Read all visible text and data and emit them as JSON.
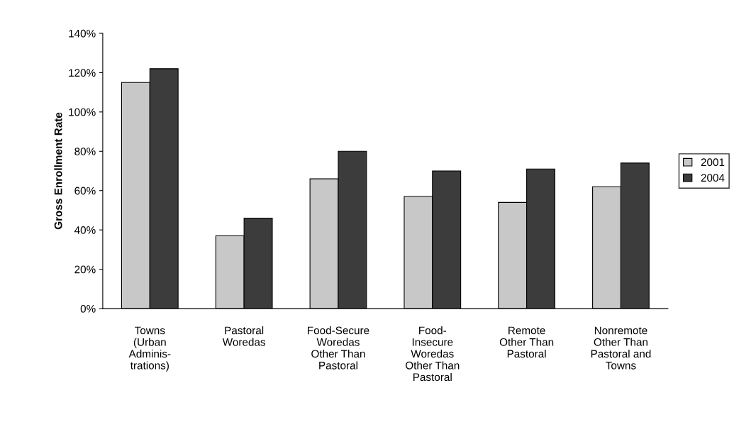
{
  "chart_data": {
    "type": "bar",
    "ylabel": "Gross Enrollment Rate",
    "categories": [
      "Towns\n(Urban\nAdminis-\ntrations)",
      "Pastoral\nWoredas",
      "Food-Secure\nWoredas\nOther Than\nPastoral",
      "Food-\nInsecure\nWoredas\nOther Than\nPastoral",
      "Remote\nOther Than\nPastoral",
      "Nonremote\nOther Than\nPastoral and\nTowns"
    ],
    "series": [
      {
        "name": "2001",
        "color": "#c8c8c8",
        "values": [
          115,
          37,
          66,
          57,
          54,
          62
        ]
      },
      {
        "name": "2004",
        "color": "#3c3c3c",
        "values": [
          122,
          46,
          80,
          70,
          71,
          74
        ]
      }
    ],
    "ylim": [
      0,
      140
    ],
    "yticks": [
      {
        "value": 0,
        "label": "0%"
      },
      {
        "value": 20,
        "label": "20%"
      },
      {
        "value": 40,
        "label": "40%"
      },
      {
        "value": 60,
        "label": "60%"
      },
      {
        "value": 80,
        "label": "80%"
      },
      {
        "value": 100,
        "label": "100%"
      },
      {
        "value": 120,
        "label": "120%"
      },
      {
        "value": 140,
        "label": "140%"
      }
    ],
    "grid": false,
    "legend": "right"
  }
}
